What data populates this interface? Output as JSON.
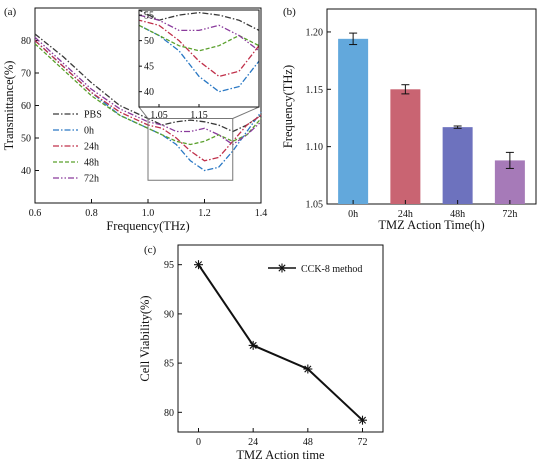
{
  "chart_data": [
    {
      "panel": "(a)",
      "type": "line",
      "xlabel": "Frequency(THz)",
      "ylabel": "Transmittance(%)",
      "xlim": [
        0.6,
        1.4
      ],
      "ylim": [
        30,
        90
      ],
      "xticks": [
        "0.6",
        "0.8",
        "1.0",
        "1.2",
        "1.4"
      ],
      "yticks": [
        "40",
        "50",
        "60",
        "70",
        "80"
      ],
      "legend_position": "left",
      "series": [
        {
          "name": "PBS",
          "color": "#3a3a3a",
          "x": [
            0.6,
            0.7,
            0.8,
            0.9,
            1.0,
            1.05,
            1.1,
            1.15,
            1.2,
            1.25,
            1.3,
            1.35,
            1.4
          ],
          "y": [
            82,
            75,
            67,
            60,
            56,
            54,
            55,
            55.5,
            55,
            54,
            52,
            54,
            57
          ]
        },
        {
          "name": "0h",
          "color": "#2a78c4",
          "x": [
            0.6,
            0.7,
            0.8,
            0.9,
            1.0,
            1.05,
            1.1,
            1.15,
            1.2,
            1.25,
            1.3,
            1.35,
            1.4
          ],
          "y": [
            80,
            72,
            64,
            57,
            53,
            51,
            48,
            43,
            40,
            41,
            46,
            52,
            58
          ]
        },
        {
          "name": "24h",
          "color": "#c0304a",
          "x": [
            0.6,
            0.7,
            0.8,
            0.9,
            1.0,
            1.05,
            1.1,
            1.15,
            1.2,
            1.25,
            1.3,
            1.35,
            1.4
          ],
          "y": [
            80,
            72,
            64,
            58,
            54,
            53,
            50,
            46,
            43,
            44,
            49,
            54,
            57
          ]
        },
        {
          "name": "48h",
          "color": "#5aa02c",
          "x": [
            0.6,
            0.7,
            0.8,
            0.9,
            1.0,
            1.05,
            1.1,
            1.15,
            1.2,
            1.25,
            1.3,
            1.35,
            1.4
          ],
          "y": [
            79,
            71,
            63,
            57,
            53,
            51,
            49,
            48,
            49,
            51,
            49,
            51,
            56
          ]
        },
        {
          "name": "72h",
          "color": "#8a3b9c",
          "x": [
            0.6,
            0.7,
            0.8,
            0.9,
            1.0,
            1.05,
            1.1,
            1.15,
            1.2,
            1.25,
            1.3,
            1.35,
            1.4
          ],
          "y": [
            81,
            73,
            65,
            59,
            55,
            54,
            52,
            52,
            53,
            51,
            48,
            51,
            55
          ]
        }
      ],
      "inset": {
        "xlim": [
          1.0,
          1.3
        ],
        "ylim": [
          37,
          56
        ],
        "xticks": [
          "1.05",
          "1.15"
        ],
        "yticks": [
          "40",
          "45",
          "50",
          "55"
        ]
      }
    },
    {
      "panel": "(b)",
      "type": "bar",
      "xlabel": "TMZ Action Time(h)",
      "ylabel": "Frequency(THz)",
      "categories": [
        "0h",
        "24h",
        "48h",
        "72h"
      ],
      "values": [
        1.194,
        1.15,
        1.117,
        1.088
      ],
      "errors": [
        0.005,
        0.004,
        0.001,
        0.007
      ],
      "colors": [
        "#62a8dc",
        "#c96472",
        "#6d72be",
        "#a67ab8"
      ],
      "ylim": [
        1.05,
        1.22
      ],
      "yticks": [
        "1.05",
        "1.10",
        "1.15",
        "1.20"
      ]
    },
    {
      "panel": "(c)",
      "type": "line",
      "xlabel": "TMZ Action time",
      "ylabel": "Cell Viability(%)",
      "x": [
        0,
        24,
        48,
        72
      ],
      "xticks": [
        "0",
        "24",
        "48",
        "72"
      ],
      "yticks": [
        "80",
        "85",
        "90",
        "95"
      ],
      "xlim": [
        -9,
        81
      ],
      "ylim": [
        78,
        97
      ],
      "series": [
        {
          "name": "CCK-8 method",
          "color": "#111111",
          "values": [
            95.0,
            86.8,
            84.4,
            79.2
          ]
        }
      ],
      "legend_position": "top-right"
    }
  ]
}
